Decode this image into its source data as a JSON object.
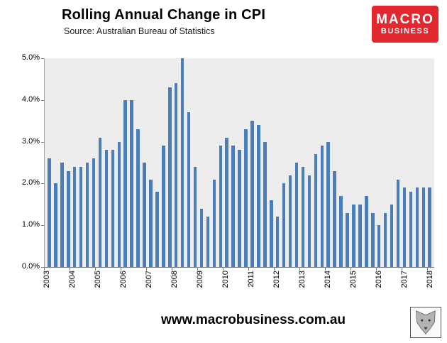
{
  "header": {
    "title": "Rolling Annual Change in CPI",
    "subtitle": "Source: Australian Bureau of Statistics"
  },
  "logo": {
    "line1": "MACRO",
    "line2": "BUSINESS",
    "bg_color": "#e2282e"
  },
  "footer": {
    "url": "www.macrobusiness.com.au"
  },
  "chart_data": {
    "type": "bar",
    "title": "Rolling Annual Change in CPI",
    "source": "Source: Australian Bureau of Statistics",
    "unit": "%",
    "x": [
      "2003 Q1",
      "2003 Q2",
      "2003 Q3",
      "2003 Q4",
      "2004 Q1",
      "2004 Q2",
      "2004 Q3",
      "2004 Q4",
      "2005 Q1",
      "2005 Q2",
      "2005 Q3",
      "2005 Q4",
      "2006 Q1",
      "2006 Q2",
      "2006 Q3",
      "2006 Q4",
      "2007 Q1",
      "2007 Q2",
      "2007 Q3",
      "2007 Q4",
      "2008 Q1",
      "2008 Q2",
      "2008 Q3",
      "2008 Q4",
      "2009 Q1",
      "2009 Q2",
      "2009 Q3",
      "2009 Q4",
      "2010 Q1",
      "2010 Q2",
      "2010 Q3",
      "2010 Q4",
      "2011 Q1",
      "2011 Q2",
      "2011 Q3",
      "2011 Q4",
      "2012 Q1",
      "2012 Q2",
      "2012 Q3",
      "2012 Q4",
      "2013 Q1",
      "2013 Q2",
      "2013 Q3",
      "2013 Q4",
      "2014 Q1",
      "2014 Q2",
      "2014 Q3",
      "2014 Q4",
      "2015 Q1",
      "2015 Q2",
      "2015 Q3",
      "2015 Q4",
      "2016 Q1",
      "2016 Q2",
      "2016 Q3",
      "2016 Q4",
      "2017 Q1",
      "2017 Q2",
      "2017 Q3",
      "2017 Q4",
      "2018 Q1"
    ],
    "values": [
      2.6,
      2.0,
      2.5,
      2.3,
      2.4,
      2.4,
      2.5,
      2.6,
      3.1,
      2.8,
      2.8,
      3.0,
      4.0,
      4.0,
      3.3,
      2.5,
      2.1,
      1.8,
      2.9,
      4.3,
      4.4,
      5.0,
      3.7,
      2.4,
      1.4,
      1.2,
      2.1,
      2.9,
      3.1,
      2.9,
      2.8,
      3.3,
      3.5,
      3.4,
      3.0,
      1.6,
      1.2,
      2.0,
      2.2,
      2.5,
      2.4,
      2.2,
      2.7,
      2.9,
      3.0,
      2.3,
      1.7,
      1.3,
      1.5,
      1.5,
      1.7,
      1.3,
      1.0,
      1.3,
      1.5,
      2.1,
      1.9,
      1.8,
      1.9,
      1.9,
      1.9
    ],
    "x_ticks": [
      {
        "label": "2003",
        "index": 0
      },
      {
        "label": "2004",
        "index": 4
      },
      {
        "label": "2005",
        "index": 8
      },
      {
        "label": "2006",
        "index": 12
      },
      {
        "label": "2007",
        "index": 16
      },
      {
        "label": "2008",
        "index": 20
      },
      {
        "label": "2009",
        "index": 24
      },
      {
        "label": "2010",
        "index": 28
      },
      {
        "label": "2011",
        "index": 32
      },
      {
        "label": "2012",
        "index": 36
      },
      {
        "label": "2013",
        "index": 40
      },
      {
        "label": "2014",
        "index": 44
      },
      {
        "label": "2015",
        "index": 48
      },
      {
        "label": "2016",
        "index": 52
      },
      {
        "label": "2017",
        "index": 56
      },
      {
        "label": "2018",
        "index": 60
      }
    ],
    "y_tick_labels": [
      "0.0%",
      "1.0%",
      "2.0%",
      "3.0%",
      "4.0%",
      "5.0%"
    ],
    "ylim": [
      0,
      5
    ],
    "grid": false,
    "legend": "none",
    "bar_color": "#4a7ebb",
    "plot_bg": "#ededed"
  }
}
